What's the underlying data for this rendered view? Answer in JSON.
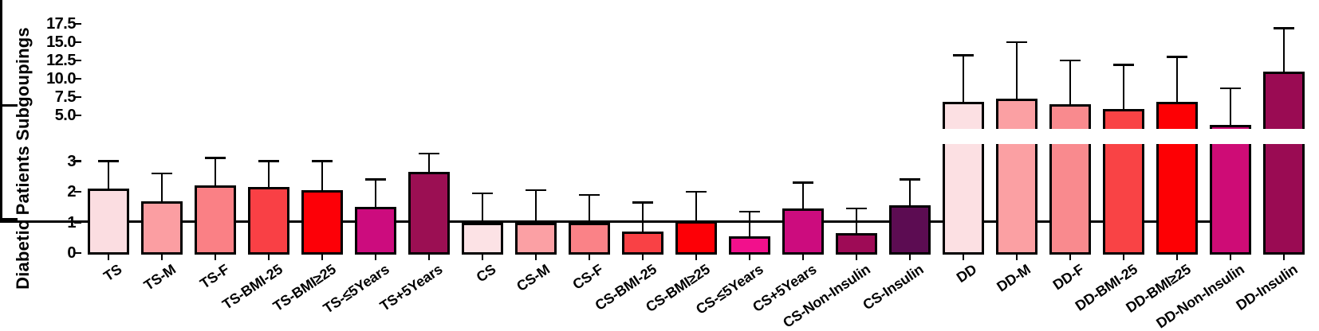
{
  "chart_data": {
    "type": "bar",
    "title": "",
    "xlabel": "",
    "ylabel": "Diabetic Patients Subgoupings",
    "grid": false,
    "legend": false,
    "error_bars": "upper SD whiskers with caps",
    "axis_break": true,
    "lower_axis": {
      "ticks": [
        "0",
        "1",
        "2",
        "3"
      ],
      "range": [
        0,
        3.4
      ]
    },
    "upper_axis": {
      "ticks": [
        "5.0",
        "7.5",
        "10.0",
        "12.5",
        "15.0",
        "17.5"
      ],
      "range": [
        3.3,
        17.5
      ]
    },
    "groups": [
      "TS",
      "CS",
      "DD"
    ],
    "bars": [
      {
        "label": "TS",
        "value": 2.1,
        "error": 0.9,
        "color": "#FBDDE1",
        "segment": "lower"
      },
      {
        "label": "TS-M",
        "value": 1.7,
        "error": 0.9,
        "color": "#FB9EA2",
        "segment": "lower"
      },
      {
        "label": "TS-F",
        "value": 2.2,
        "error": 0.9,
        "color": "#FA8085",
        "segment": "lower"
      },
      {
        "label": "TS-BMI-25",
        "value": 2.15,
        "error": 0.85,
        "color": "#F94045",
        "segment": "lower"
      },
      {
        "label": "TS-BMI≥25",
        "value": 2.05,
        "error": 0.95,
        "color": "#FD0007",
        "segment": "lower"
      },
      {
        "label": "TS-≤5Years",
        "value": 1.5,
        "error": 0.9,
        "color": "#CC0C7E",
        "segment": "lower"
      },
      {
        "label": "TS+5Years",
        "value": 2.65,
        "error": 0.6,
        "color": "#9B0F53",
        "segment": "lower"
      },
      {
        "label": "CS",
        "value": 1.0,
        "error": 0.95,
        "color": "#FCE2E5",
        "segment": "lower"
      },
      {
        "label": "CS-M",
        "value": 1.0,
        "error": 1.05,
        "color": "#FBA0A4",
        "segment": "lower"
      },
      {
        "label": "CS-F",
        "value": 1.0,
        "error": 0.9,
        "color": "#FA8287",
        "segment": "lower"
      },
      {
        "label": "CS-BMI-25",
        "value": 0.7,
        "error": 0.95,
        "color": "#F94145",
        "segment": "lower"
      },
      {
        "label": "CS-BMI≥25",
        "value": 1.05,
        "error": 0.95,
        "color": "#FD0006",
        "segment": "lower"
      },
      {
        "label": "CS-≤5Years",
        "value": 0.55,
        "error": 0.8,
        "color": "#F2108C",
        "segment": "lower"
      },
      {
        "label": "CS+5Years",
        "value": 1.45,
        "error": 0.85,
        "color": "#CC0C7E",
        "segment": "lower"
      },
      {
        "label": "CS-Non-Insulin",
        "value": 0.65,
        "error": 0.8,
        "color": "#9E0B56",
        "segment": "lower"
      },
      {
        "label": "CS-Insulin",
        "value": 1.55,
        "error": 0.85,
        "color": "#5C0C52",
        "segment": "lower"
      },
      {
        "label": "DD",
        "value": 6.8,
        "error": 6.4,
        "color": "#FCE0E3",
        "segment": "upper"
      },
      {
        "label": "DD-M",
        "value": 7.3,
        "error": 7.7,
        "color": "#FBA0A3",
        "segment": "upper"
      },
      {
        "label": "DD-F",
        "value": 6.5,
        "error": 6.0,
        "color": "#F98A8E",
        "segment": "upper"
      },
      {
        "label": "DD-BMI-25",
        "value": 5.9,
        "error": 6.0,
        "color": "#F94345",
        "segment": "upper"
      },
      {
        "label": "DD-BMI≥25",
        "value": 6.8,
        "error": 6.2,
        "color": "#FD0004",
        "segment": "upper"
      },
      {
        "label": "DD-Non-Insulin",
        "value": 3.7,
        "error": 5.0,
        "color": "#CE0C76",
        "segment": "upper"
      },
      {
        "label": "DD-Insulin",
        "value": 11.0,
        "error": 5.9,
        "color": "#9A0B53",
        "segment": "upper"
      }
    ]
  }
}
